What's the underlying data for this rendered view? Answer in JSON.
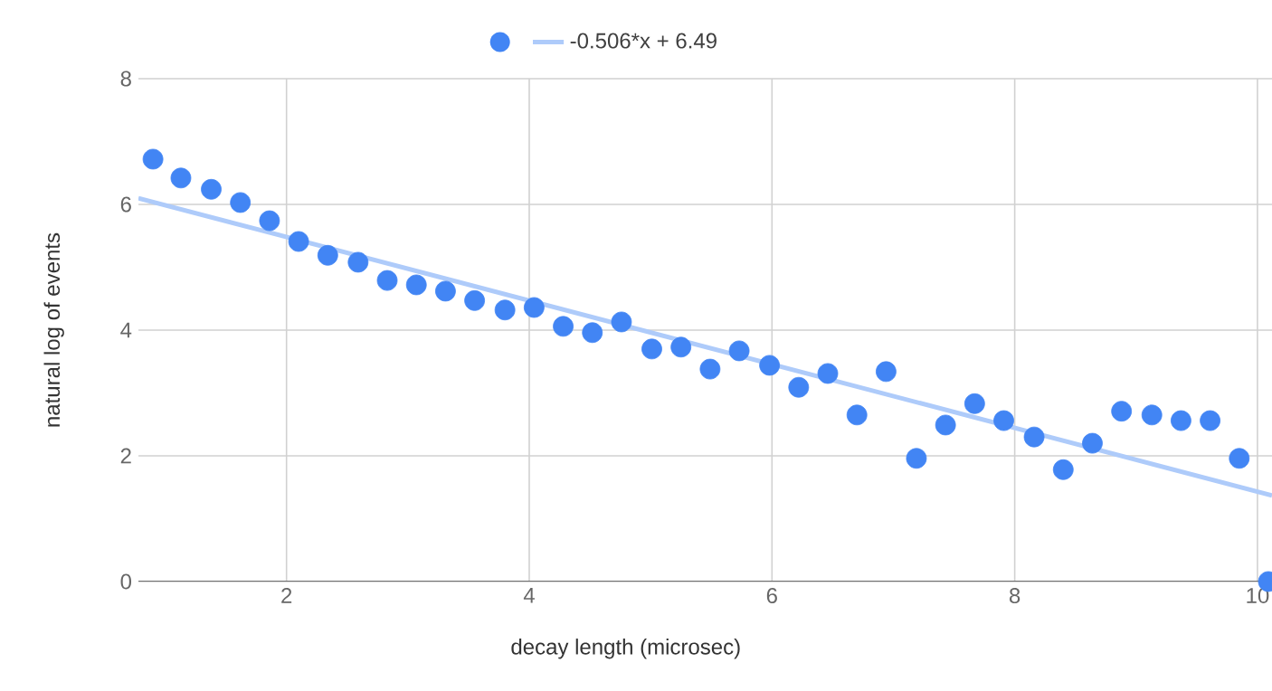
{
  "chart_data": {
    "type": "scatter",
    "xlabel": "decay length (microsec)",
    "ylabel": "natural log of events",
    "xlim": [
      0.78,
      10.12
    ],
    "ylim": [
      0,
      8
    ],
    "xticks": [
      2,
      4,
      6,
      8,
      10
    ],
    "yticks": [
      0,
      2,
      4,
      6,
      8
    ],
    "grid": true,
    "legend": "top",
    "series": [
      {
        "marker": "circle",
        "color": "#4285f4",
        "x": [
          0.9,
          1.13,
          1.38,
          1.62,
          1.86,
          2.1,
          2.34,
          2.59,
          2.83,
          3.07,
          3.31,
          3.55,
          3.8,
          4.04,
          4.28,
          4.52,
          4.76,
          5.01,
          5.25,
          5.49,
          5.73,
          5.98,
          6.22,
          6.46,
          6.7,
          6.94,
          7.19,
          7.43,
          7.67,
          7.91,
          8.16,
          8.4,
          8.64,
          8.88,
          9.13,
          9.37,
          9.61,
          9.85,
          10.09
        ],
        "values": [
          6.72,
          6.42,
          6.24,
          6.03,
          5.74,
          5.41,
          5.19,
          5.08,
          4.79,
          4.72,
          4.62,
          4.47,
          4.32,
          4.36,
          4.06,
          3.96,
          4.13,
          3.7,
          3.73,
          3.38,
          3.67,
          3.44,
          3.09,
          3.31,
          2.65,
          3.34,
          1.96,
          2.49,
          2.83,
          2.56,
          2.3,
          1.78,
          2.2,
          2.71,
          2.65,
          2.56,
          2.56,
          1.96,
          0
        ]
      },
      {
        "type": "line",
        "name": "-0.506*x + 6.49",
        "color": "#aecbfa",
        "x": [
          0.78,
          10.12
        ],
        "values": [
          6.1,
          1.37
        ]
      }
    ]
  }
}
